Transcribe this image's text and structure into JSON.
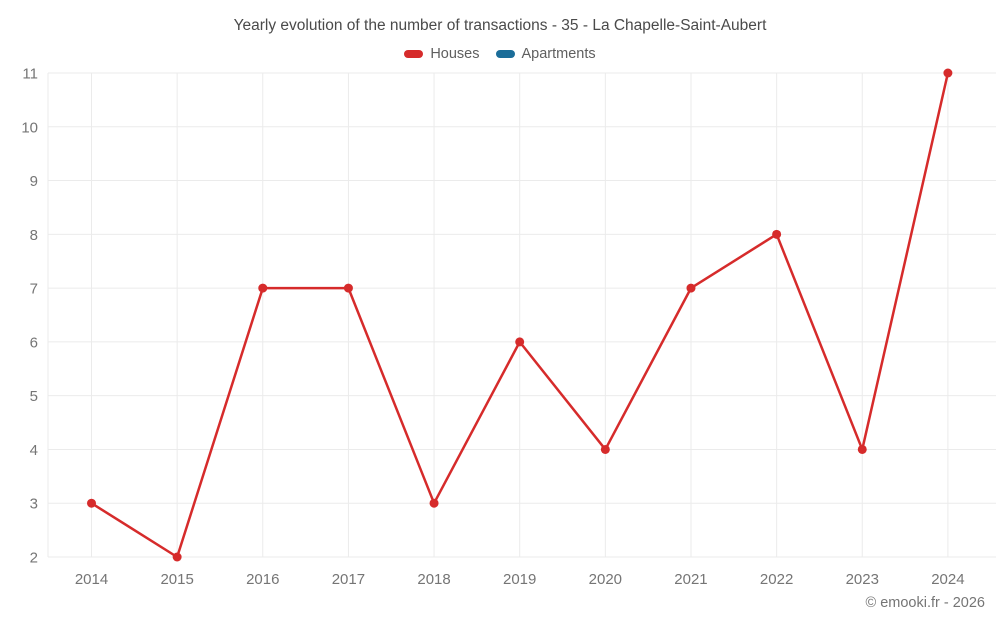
{
  "title": "Yearly evolution of the number of transactions - 35 - La Chapelle-Saint-Aubert",
  "legend": [
    {
      "label": "Houses",
      "color": "#d62b2b"
    },
    {
      "label": "Apartments",
      "color": "#1b6d99"
    }
  ],
  "footer": "© emooki.fr - 2026",
  "style": {
    "grid_color": "#ebebeb",
    "tick_color": "#757575",
    "title_color": "#4a4a4a",
    "legend_text_color": "#5f5f5f",
    "background": "#ffffff"
  },
  "chart_data": {
    "type": "line",
    "title": "Yearly evolution of the number of transactions - 35 - La Chapelle-Saint-Aubert",
    "categories": [
      "2014",
      "2015",
      "2016",
      "2017",
      "2018",
      "2019",
      "2020",
      "2021",
      "2022",
      "2023",
      "2024"
    ],
    "series": [
      {
        "name": "Houses",
        "color": "#d62b2b",
        "values": [
          3,
          2,
          7,
          7,
          3,
          6,
          4,
          7,
          8,
          4,
          11
        ]
      },
      {
        "name": "Apartments",
        "color": "#1b6d99",
        "values": []
      }
    ],
    "xlabel": "",
    "ylabel": "",
    "ylim": [
      2,
      11
    ],
    "yticks": [
      2,
      3,
      4,
      5,
      6,
      7,
      8,
      9,
      10,
      11
    ],
    "grid": true,
    "legend_position": "top",
    "marker": "circle"
  }
}
